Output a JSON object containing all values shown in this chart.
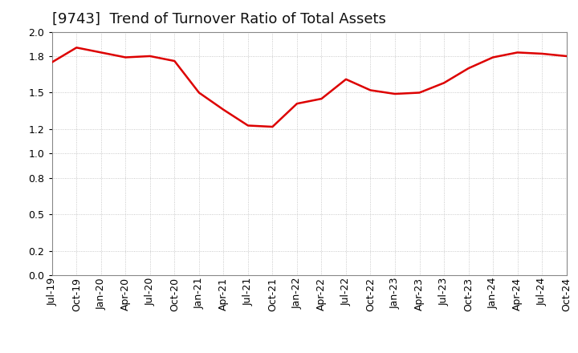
{
  "title": "[9743]  Trend of Turnover Ratio of Total Assets",
  "line_color": "#dd0000",
  "background_color": "#ffffff",
  "plot_bg_color": "#ffffff",
  "grid_color": "#bbbbbb",
  "border_color": "#888888",
  "ylim": [
    0.0,
    2.0
  ],
  "yticks": [
    0.0,
    0.2,
    0.5,
    0.8,
    1.0,
    1.2,
    1.5,
    1.8,
    2.0
  ],
  "labels": [
    "Jul-19",
    "Oct-19",
    "Jan-20",
    "Apr-20",
    "Jul-20",
    "Oct-20",
    "Jan-21",
    "Apr-21",
    "Jul-21",
    "Oct-21",
    "Jan-22",
    "Apr-22",
    "Jul-22",
    "Oct-22",
    "Jan-23",
    "Apr-23",
    "Jul-23",
    "Oct-23",
    "Jan-24",
    "Apr-24",
    "Jul-24",
    "Oct-24"
  ],
  "values": [
    1.75,
    1.87,
    1.83,
    1.79,
    1.8,
    1.76,
    1.5,
    1.36,
    1.23,
    1.22,
    1.41,
    1.45,
    1.61,
    1.52,
    1.49,
    1.5,
    1.58,
    1.7,
    1.79,
    1.83,
    1.82,
    1.8
  ],
  "title_fontsize": 13,
  "tick_fontsize": 9,
  "line_width": 1.8
}
